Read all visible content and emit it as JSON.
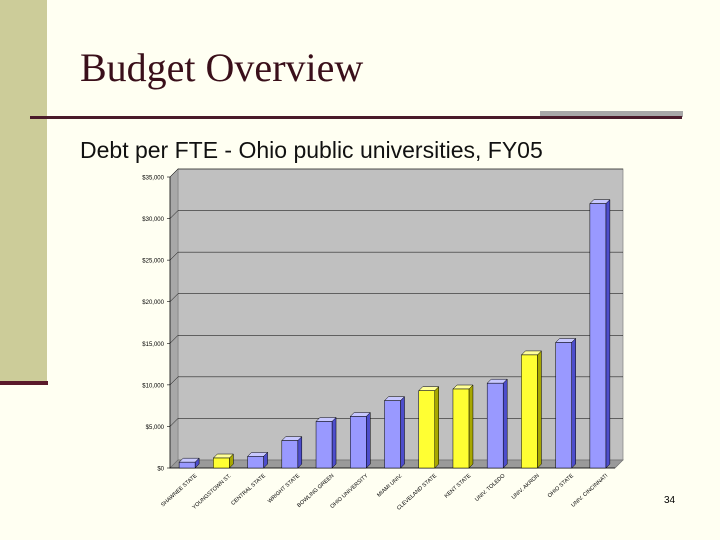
{
  "slide": {
    "title": "Budget Overview",
    "subtitle": "Debt per FTE - Ohio public universities, FY05",
    "page_number": "34"
  },
  "colors": {
    "background": "#fffff2",
    "sidebar": "#cccc99",
    "accent_rule": "#4a1a2a",
    "bar_default": "#9999ff",
    "bar_highlight": "#ffff33",
    "plot_area": "#c0c0c0"
  },
  "chart_data": {
    "type": "bar",
    "title": "",
    "xlabel": "",
    "ylabel": "",
    "ylim": [
      0,
      35000
    ],
    "yticks": [
      0,
      5000,
      10000,
      15000,
      20000,
      25000,
      30000,
      35000
    ],
    "ytick_labels": [
      "$0",
      "$5,000",
      "$10,000",
      "$15,000",
      "$20,000",
      "$25,000",
      "$30,000",
      "$35,000"
    ],
    "categories": [
      "SHAWNEE STATE",
      "YOUNGSTOWN ST.",
      "CENTRAL STATE",
      "WRIGHT STATE",
      "BOWLING GREEN",
      "OHIO UNIVERSITY",
      "MIAMI UNIV.",
      "CLEVELAND STATE",
      "KENT STATE",
      "UNIV. TOLEDO",
      "UNIV. AKRON",
      "OHIO STATE",
      "UNIV. CINCINNATI"
    ],
    "values": [
      700,
      1200,
      1400,
      3300,
      5600,
      6200,
      8100,
      9300,
      9500,
      10200,
      13600,
      15100,
      31800
    ],
    "highlight": [
      false,
      true,
      false,
      false,
      false,
      false,
      false,
      true,
      true,
      false,
      true,
      false,
      false
    ],
    "grid": true,
    "legend": "none",
    "style": "3d"
  }
}
